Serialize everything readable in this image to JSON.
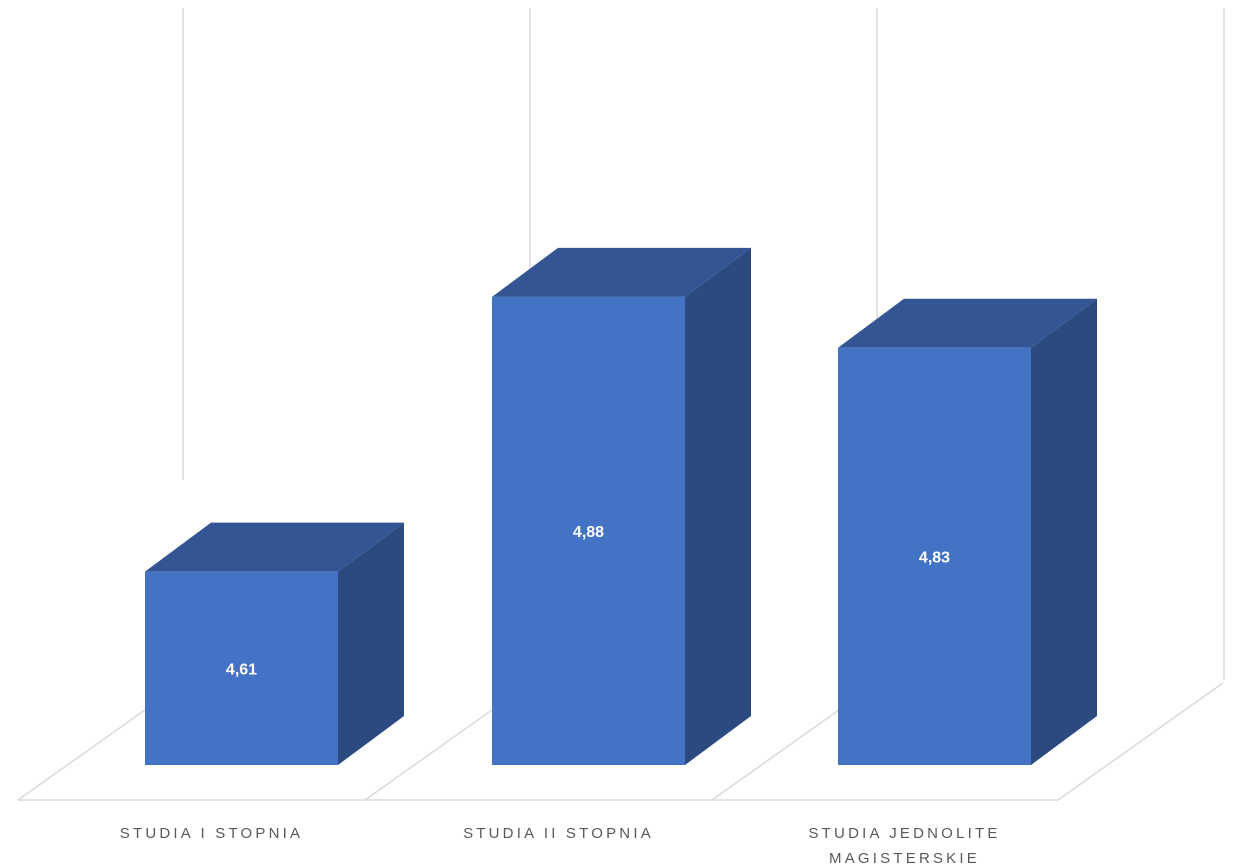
{
  "chart_data": {
    "type": "bar",
    "style": "3d-column",
    "categories": [
      "STUDIA I STOPNIA",
      "STUDIA II STOPNIA",
      "STUDIA JEDNOLITE MAGISTERSKIE"
    ],
    "category_lines": [
      [
        "STUDIA I STOPNIA"
      ],
      [
        "STUDIA II STOPNIA"
      ],
      [
        "STUDIA JEDNOLITE",
        "MAGISTERSKIE"
      ]
    ],
    "values": [
      4.61,
      4.88,
      4.83
    ],
    "data_labels": [
      "4,61",
      "4,88",
      "4,83"
    ],
    "title": "",
    "xlabel": "",
    "ylabel": "",
    "grid": true,
    "colors": {
      "front": "#4472C4",
      "top": "#335594",
      "side": "#2B4A80",
      "grid": "#D9D9D9",
      "axis_text": "#595959",
      "label_text": "#FFFFFF"
    }
  }
}
